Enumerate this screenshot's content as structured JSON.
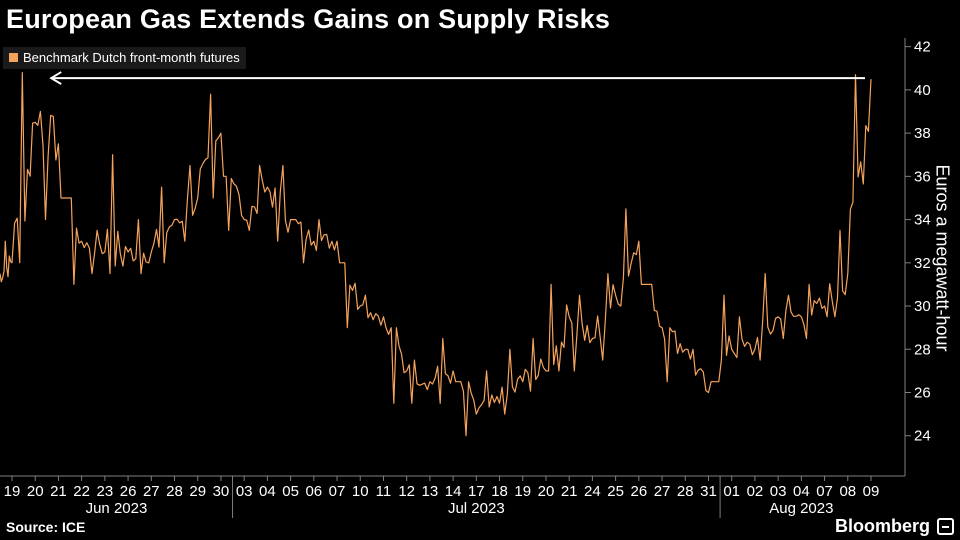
{
  "title": "European Gas Extends Gains on Supply Risks",
  "source": "Source: ICE",
  "brand": "Bloomberg",
  "colors": {
    "line": "#f5a35c",
    "axis": "#7f7f7f",
    "text": "#ffffff",
    "background": "#000000"
  },
  "chart_data": {
    "type": "line",
    "title": "European Gas Extends Gains on Supply Risks",
    "ylabel": "Euros a megawatt-hour",
    "xlabel": "",
    "ylim": [
      22.6,
      42.4
    ],
    "yticks": [
      24,
      26,
      28,
      30,
      32,
      34,
      36,
      38,
      40,
      42
    ],
    "legend": "Benchmark Dutch front-month futures",
    "legend_position": "top-left",
    "grid": false,
    "annotation": "arrow from latest value back to June 20 high",
    "x_tick_labels": [
      "19",
      "20",
      "21",
      "22",
      "23",
      "26",
      "27",
      "28",
      "29",
      "30",
      "03",
      "04",
      "05",
      "06",
      "07",
      "10",
      "11",
      "12",
      "13",
      "14",
      "17",
      "18",
      "19",
      "20",
      "21",
      "24",
      "25",
      "26",
      "27",
      "28",
      "31",
      "01",
      "02",
      "03",
      "04",
      "07",
      "08",
      "09"
    ],
    "month_labels": [
      "Jun 2023",
      "Jul 2023",
      "Aug 2023"
    ],
    "series": [
      {
        "name": "Benchmark Dutch front-month futures",
        "x": [
          "Jun 19",
          "Jun 20",
          "Jun 21",
          "Jun 22",
          "Jun 23",
          "Jun 26",
          "Jun 27",
          "Jun 28",
          "Jun 29",
          "Jun 30",
          "Jul 03",
          "Jul 04",
          "Jul 05",
          "Jul 06",
          "Jul 07",
          "Jul 10",
          "Jul 11",
          "Jul 12",
          "Jul 13",
          "Jul 14",
          "Jul 17",
          "Jul 18",
          "Jul 19",
          "Jul 20",
          "Jul 21",
          "Jul 24",
          "Jul 25",
          "Jul 26",
          "Jul 27",
          "Jul 28",
          "Jul 31",
          "Aug 01",
          "Aug 02",
          "Aug 03",
          "Aug 04",
          "Aug 07",
          "Aug 08",
          "Aug 09"
        ],
        "close": [
          32.0,
          38.5,
          37.5,
          33.0,
          32.5,
          32.5,
          32.5,
          34.0,
          35.0,
          38.0,
          34.0,
          35.5,
          34.0,
          33.0,
          33.0,
          30.0,
          29.5,
          27.0,
          26.5,
          27.0,
          25.0,
          25.5,
          26.5,
          27.0,
          29.5,
          28.5,
          30.5,
          33.0,
          29.0,
          28.0,
          26.0,
          28.0,
          28.0,
          29.5,
          29.5,
          30.0,
          31.5,
          40.5
        ],
        "high": [
          33.0,
          40.8,
          39.0,
          35.0,
          33.5,
          37.0,
          34.0,
          35.5,
          36.5,
          39.8,
          36.0,
          36.5,
          36.5,
          34.0,
          34.0,
          32.0,
          30.5,
          29.0,
          27.5,
          28.5,
          26.5,
          27.0,
          28.0,
          28.5,
          31.0,
          30.5,
          31.5,
          34.5,
          31.0,
          29.0,
          28.0,
          30.5,
          29.5,
          31.5,
          30.5,
          31.0,
          33.5,
          40.7
        ],
        "low": [
          30.5,
          32.0,
          34.0,
          31.0,
          31.5,
          31.5,
          31.5,
          32.0,
          33.0,
          35.0,
          33.5,
          33.5,
          33.0,
          32.0,
          32.0,
          29.0,
          28.5,
          25.5,
          25.5,
          25.5,
          24.0,
          24.5,
          25.0,
          25.5,
          27.0,
          27.0,
          27.5,
          30.0,
          28.0,
          26.5,
          25.5,
          26.5,
          27.0,
          27.5,
          28.5,
          28.5,
          29.5,
          31.5
        ]
      }
    ]
  }
}
